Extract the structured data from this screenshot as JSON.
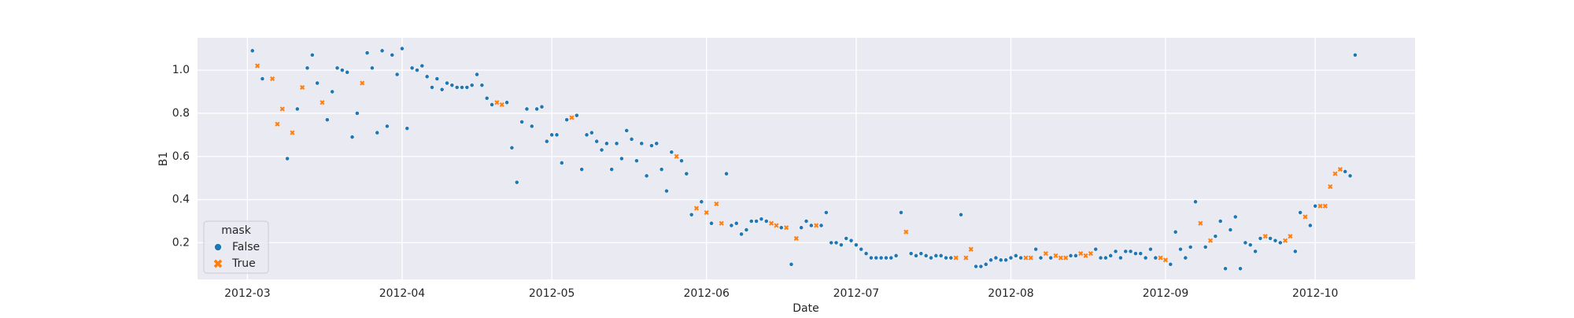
{
  "chart_data": {
    "type": "scatter",
    "x_label": "Date",
    "y_label": "B1",
    "legend_title": "mask",
    "legend_loc": "lower left",
    "grid": true,
    "xlim": [
      "2012-02-20",
      "2012-10-21"
    ],
    "xticks": [
      {
        "value": "2012-03-01",
        "label": "2012-03"
      },
      {
        "value": "2012-04-01",
        "label": "2012-04"
      },
      {
        "value": "2012-05-01",
        "label": "2012-05"
      },
      {
        "value": "2012-06-01",
        "label": "2012-06"
      },
      {
        "value": "2012-07-01",
        "label": "2012-07"
      },
      {
        "value": "2012-08-01",
        "label": "2012-08"
      },
      {
        "value": "2012-09-01",
        "label": "2012-09"
      },
      {
        "value": "2012-10-01",
        "label": "2012-10"
      }
    ],
    "ylim": [
      0.03,
      1.15
    ],
    "yticks": [
      0.2,
      0.4,
      0.6,
      0.8,
      {
        "value": 1,
        "label": "1.0"
      }
    ],
    "series": [
      {
        "name": "False",
        "color": "#1f77b4",
        "marker": "o",
        "x": [
          "2012-03-02",
          "2012-03-04",
          "2012-03-09",
          "2012-03-11",
          "2012-03-13",
          "2012-03-14",
          "2012-03-15",
          "2012-03-17",
          "2012-03-18",
          "2012-03-19",
          "2012-03-20",
          "2012-03-21",
          "2012-03-22",
          "2012-03-23",
          "2012-03-25",
          "2012-03-26",
          "2012-03-27",
          "2012-03-28",
          "2012-03-29",
          "2012-03-30",
          "2012-03-31",
          "2012-04-01",
          "2012-04-02",
          "2012-04-03",
          "2012-04-04",
          "2012-04-05",
          "2012-04-06",
          "2012-04-07",
          "2012-04-08",
          "2012-04-09",
          "2012-04-10",
          "2012-04-11",
          "2012-04-12",
          "2012-04-13",
          "2012-04-14",
          "2012-04-15",
          "2012-04-16",
          "2012-04-17",
          "2012-04-18",
          "2012-04-19",
          "2012-04-22",
          "2012-04-23",
          "2012-04-24",
          "2012-04-25",
          "2012-04-26",
          "2012-04-27",
          "2012-04-28",
          "2012-04-29",
          "2012-04-30",
          "2012-05-01",
          "2012-05-02",
          "2012-05-03",
          "2012-05-04",
          "2012-05-06",
          "2012-05-07",
          "2012-05-08",
          "2012-05-09",
          "2012-05-10",
          "2012-05-11",
          "2012-05-12",
          "2012-05-13",
          "2012-05-14",
          "2012-05-15",
          "2012-05-16",
          "2012-05-17",
          "2012-05-18",
          "2012-05-19",
          "2012-05-20",
          "2012-05-21",
          "2012-05-22",
          "2012-05-23",
          "2012-05-24",
          "2012-05-25",
          "2012-05-27",
          "2012-05-28",
          "2012-05-29",
          "2012-05-31",
          "2012-06-02",
          "2012-06-05",
          "2012-06-06",
          "2012-06-07",
          "2012-06-08",
          "2012-06-09",
          "2012-06-10",
          "2012-06-11",
          "2012-06-12",
          "2012-06-13",
          "2012-06-16",
          "2012-06-18",
          "2012-06-20",
          "2012-06-21",
          "2012-06-22",
          "2012-06-24",
          "2012-06-25",
          "2012-06-26",
          "2012-06-27",
          "2012-06-28",
          "2012-06-29",
          "2012-06-30",
          "2012-07-01",
          "2012-07-02",
          "2012-07-03",
          "2012-07-04",
          "2012-07-05",
          "2012-07-06",
          "2012-07-07",
          "2012-07-08",
          "2012-07-09",
          "2012-07-10",
          "2012-07-12",
          "2012-07-13",
          "2012-07-14",
          "2012-07-15",
          "2012-07-16",
          "2012-07-17",
          "2012-07-18",
          "2012-07-19",
          "2012-07-20",
          "2012-07-22",
          "2012-07-25",
          "2012-07-26",
          "2012-07-27",
          "2012-07-28",
          "2012-07-29",
          "2012-07-30",
          "2012-07-31",
          "2012-08-01",
          "2012-08-02",
          "2012-08-03",
          "2012-08-06",
          "2012-08-07",
          "2012-08-09",
          "2012-08-13",
          "2012-08-14",
          "2012-08-18",
          "2012-08-19",
          "2012-08-20",
          "2012-08-21",
          "2012-08-22",
          "2012-08-23",
          "2012-08-24",
          "2012-08-25",
          "2012-08-26",
          "2012-08-27",
          "2012-08-28",
          "2012-08-29",
          "2012-08-30",
          "2012-09-02",
          "2012-09-03",
          "2012-09-04",
          "2012-09-05",
          "2012-09-06",
          "2012-09-07",
          "2012-09-09",
          "2012-09-11",
          "2012-09-12",
          "2012-09-13",
          "2012-09-14",
          "2012-09-15",
          "2012-09-16",
          "2012-09-17",
          "2012-09-18",
          "2012-09-19",
          "2012-09-20",
          "2012-09-22",
          "2012-09-23",
          "2012-09-24",
          "2012-09-27",
          "2012-09-28",
          "2012-09-30",
          "2012-10-01",
          "2012-10-07",
          "2012-10-08",
          "2012-10-09"
        ],
        "values": [
          1.09,
          0.96,
          0.59,
          0.82,
          1.01,
          1.07,
          0.94,
          0.77,
          0.9,
          1.01,
          1.0,
          0.99,
          0.69,
          0.8,
          1.08,
          1.01,
          0.71,
          1.09,
          0.74,
          1.07,
          0.98,
          1.1,
          0.73,
          1.01,
          1.0,
          1.02,
          0.97,
          0.92,
          0.96,
          0.91,
          0.94,
          0.93,
          0.92,
          0.92,
          0.92,
          0.93,
          0.98,
          0.93,
          0.87,
          0.84,
          0.85,
          0.64,
          0.48,
          0.76,
          0.82,
          0.74,
          0.82,
          0.83,
          0.67,
          0.7,
          0.7,
          0.57,
          0.77,
          0.79,
          0.54,
          0.7,
          0.71,
          0.67,
          0.63,
          0.66,
          0.54,
          0.66,
          0.59,
          0.72,
          0.68,
          0.58,
          0.66,
          0.51,
          0.65,
          0.66,
          0.54,
          0.44,
          0.62,
          0.58,
          0.52,
          0.33,
          0.39,
          0.29,
          0.52,
          0.28,
          0.29,
          0.24,
          0.26,
          0.3,
          0.3,
          0.31,
          0.3,
          0.27,
          0.1,
          0.27,
          0.3,
          0.28,
          0.28,
          0.34,
          0.2,
          0.2,
          0.19,
          0.22,
          0.21,
          0.19,
          0.17,
          0.15,
          0.13,
          0.13,
          0.13,
          0.13,
          0.13,
          0.14,
          0.34,
          0.15,
          0.14,
          0.15,
          0.14,
          0.13,
          0.14,
          0.14,
          0.13,
          0.13,
          0.33,
          0.09,
          0.09,
          0.1,
          0.12,
          0.13,
          0.12,
          0.12,
          0.13,
          0.14,
          0.13,
          0.17,
          0.13,
          0.13,
          0.14,
          0.14,
          0.17,
          0.13,
          0.13,
          0.14,
          0.16,
          0.13,
          0.16,
          0.16,
          0.15,
          0.15,
          0.13,
          0.17,
          0.13,
          0.1,
          0.25,
          0.17,
          0.13,
          0.18,
          0.39,
          0.18,
          0.23,
          0.3,
          0.08,
          0.26,
          0.32,
          0.08,
          0.2,
          0.19,
          0.16,
          0.22,
          0.22,
          0.21,
          0.2,
          0.16,
          0.34,
          0.28,
          0.37,
          0.53,
          0.51,
          1.07
        ]
      },
      {
        "name": "True",
        "color": "#ff7f0e",
        "marker": "X",
        "x": [
          "2012-03-03",
          "2012-03-06",
          "2012-03-07",
          "2012-03-08",
          "2012-03-10",
          "2012-03-12",
          "2012-03-16",
          "2012-03-24",
          "2012-04-20",
          "2012-04-21",
          "2012-05-05",
          "2012-05-26",
          "2012-05-30",
          "2012-06-01",
          "2012-06-03",
          "2012-06-04",
          "2012-06-14",
          "2012-06-15",
          "2012-06-17",
          "2012-06-19",
          "2012-06-23",
          "2012-07-11",
          "2012-07-21",
          "2012-07-23",
          "2012-07-24",
          "2012-08-04",
          "2012-08-05",
          "2012-08-08",
          "2012-08-10",
          "2012-08-11",
          "2012-08-12",
          "2012-08-15",
          "2012-08-16",
          "2012-08-17",
          "2012-08-31",
          "2012-09-01",
          "2012-09-08",
          "2012-09-10",
          "2012-09-21",
          "2012-09-25",
          "2012-09-26",
          "2012-09-29",
          "2012-10-02",
          "2012-10-03",
          "2012-10-04",
          "2012-10-05",
          "2012-10-06"
        ],
        "values": [
          1.02,
          0.96,
          0.75,
          0.82,
          0.71,
          0.92,
          0.85,
          0.94,
          0.85,
          0.84,
          0.78,
          0.6,
          0.36,
          0.34,
          0.38,
          0.29,
          0.29,
          0.28,
          0.27,
          0.22,
          0.28,
          0.25,
          0.13,
          0.13,
          0.17,
          0.13,
          0.13,
          0.15,
          0.14,
          0.13,
          0.13,
          0.15,
          0.14,
          0.15,
          0.13,
          0.12,
          0.29,
          0.21,
          0.23,
          0.21,
          0.23,
          0.32,
          0.37,
          0.37,
          0.46,
          0.52,
          0.54
        ]
      }
    ]
  }
}
